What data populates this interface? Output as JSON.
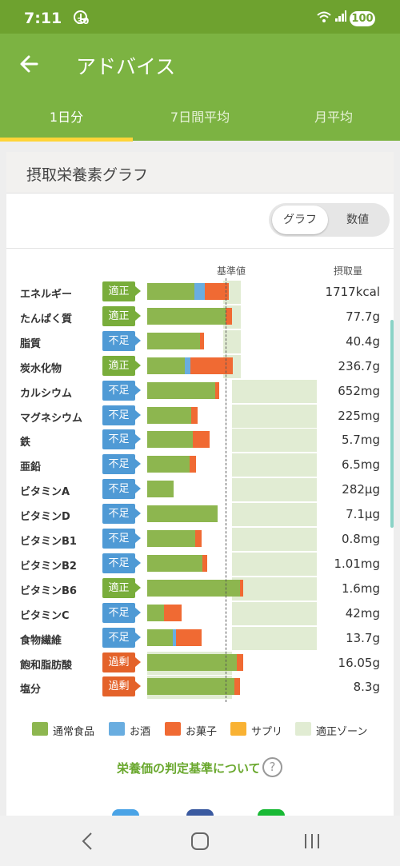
{
  "status": {
    "time": "7:11",
    "small": "30",
    "battery": "100"
  },
  "header": {
    "title": "アドバイス"
  },
  "tabs": [
    {
      "label": "1日分"
    },
    {
      "label": "7日間平均"
    },
    {
      "label": "月平均"
    }
  ],
  "card": {
    "title": "摂取栄養素グラフ",
    "toggle": {
      "graph": "グラフ",
      "numeric": "数値"
    },
    "col_base": "基準値",
    "col_intake": "摂取量"
  },
  "colors": {
    "normal": "#8db64f",
    "alcohol": "#69ade0",
    "snack": "#f06a33",
    "supplement": "#f9b233",
    "zone": "#e1ecd3",
    "ok": "#79ad3b",
    "low": "#4f9ad5",
    "over": "#e4622a"
  },
  "nutrients": [
    {
      "name": "エネルギー",
      "status": "適正",
      "value": "1717kcal",
      "parts": [
        0.56,
        0.12,
        0.28,
        0
      ],
      "zone": [
        0.9,
        1.1
      ]
    },
    {
      "name": "たんぱく質",
      "status": "適正",
      "value": "77.7g",
      "parts": [
        0.92,
        0,
        0.08,
        0
      ],
      "zone": [
        0.9,
        1.1
      ]
    },
    {
      "name": "脂質",
      "status": "不足",
      "value": "40.4g",
      "parts": [
        0.62,
        0,
        0.05,
        0
      ],
      "zone": [
        0.9,
        1.1
      ]
    },
    {
      "name": "炭水化物",
      "status": "適正",
      "value": "236.7g",
      "parts": [
        0.44,
        0.07,
        0.5,
        0
      ],
      "zone": [
        0.9,
        1.1
      ]
    },
    {
      "name": "カルシウム",
      "status": "不足",
      "value": "652mg",
      "parts": [
        0.8,
        0,
        0.05,
        0
      ],
      "zone": [
        1.0,
        2.0
      ]
    },
    {
      "name": "マグネシウム",
      "status": "不足",
      "value": "225mg",
      "parts": [
        0.52,
        0,
        0.08,
        0
      ],
      "zone": [
        1.0,
        2.0
      ]
    },
    {
      "name": "鉄",
      "status": "不足",
      "value": "5.7mg",
      "parts": [
        0.54,
        0,
        0.2,
        0
      ],
      "zone": [
        1.0,
        2.0
      ]
    },
    {
      "name": "亜鉛",
      "status": "不足",
      "value": "6.5mg",
      "parts": [
        0.5,
        0,
        0.08,
        0
      ],
      "zone": [
        1.0,
        2.0
      ]
    },
    {
      "name": "ビタミンA",
      "status": "不足",
      "value": "282μg",
      "parts": [
        0.31,
        0,
        0,
        0
      ],
      "zone": [
        1.0,
        2.0
      ]
    },
    {
      "name": "ビタミンD",
      "status": "不足",
      "value": "7.1μg",
      "parts": [
        0.83,
        0,
        0,
        0
      ],
      "zone": [
        1.0,
        2.0
      ]
    },
    {
      "name": "ビタミンB1",
      "status": "不足",
      "value": "0.8mg",
      "parts": [
        0.57,
        0,
        0.08,
        0
      ],
      "zone": [
        1.0,
        2.0
      ]
    },
    {
      "name": "ビタミンB2",
      "status": "不足",
      "value": "1.01mg",
      "parts": [
        0.65,
        0,
        0.06,
        0
      ],
      "zone": [
        1.0,
        2.0
      ]
    },
    {
      "name": "ビタミンB6",
      "status": "適正",
      "value": "1.6mg",
      "parts": [
        1.09,
        0,
        0.04,
        0
      ],
      "zone": [
        1.0,
        2.0
      ]
    },
    {
      "name": "ビタミンC",
      "status": "不足",
      "value": "42mg",
      "parts": [
        0.2,
        0,
        0.21,
        0
      ],
      "zone": [
        1.0,
        2.0
      ]
    },
    {
      "name": "食物繊維",
      "status": "不足",
      "value": "13.7g",
      "parts": [
        0.3,
        0.04,
        0.3,
        0
      ],
      "zone": [
        1.0,
        2.0
      ]
    },
    {
      "name": "飽和脂肪酸",
      "status": "過剰",
      "value": "16.05g",
      "parts": [
        1.06,
        0,
        0.08,
        0
      ],
      "zone": [
        0,
        1.0
      ]
    },
    {
      "name": "塩分",
      "status": "過剰",
      "value": "8.3g",
      "parts": [
        1.03,
        0,
        0.07,
        0
      ],
      "zone": [
        0,
        1.0
      ]
    }
  ],
  "legend": [
    {
      "label": "通常食品",
      "color": "#8db64f"
    },
    {
      "label": "お酒",
      "color": "#69ade0"
    },
    {
      "label": "お菓子",
      "color": "#f06a33"
    },
    {
      "label": "サプリ",
      "color": "#f9b233"
    },
    {
      "label": "適正ゾーン",
      "color": "#e1ecd3"
    }
  ],
  "criteria_link": "栄養価の判定基準について",
  "help_icon": "?",
  "share_icons": [
    "twitter-icon",
    "facebook-icon",
    "line-icon"
  ]
}
